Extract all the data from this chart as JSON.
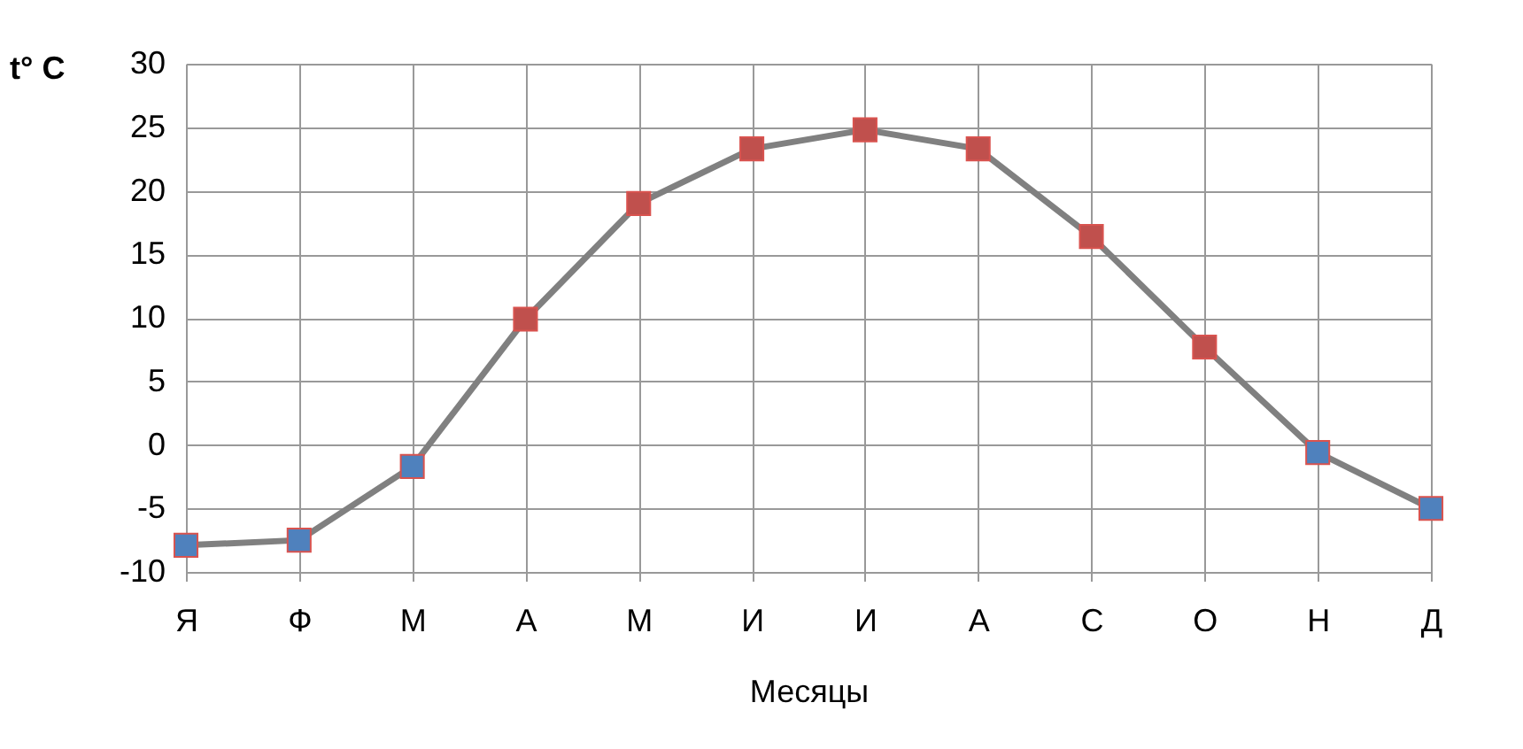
{
  "chart_data": {
    "type": "line",
    "xlabel": "Месяцы",
    "ylabel": "t° C",
    "categories": [
      "Я",
      "Ф",
      "М",
      "А",
      "М",
      "И",
      "И",
      "А",
      "С",
      "О",
      "Н",
      "Д"
    ],
    "series": [
      {
        "color": "#808080",
        "values": [
          -7.9,
          -7.5,
          -1.7,
          9.9,
          19.0,
          23.3,
          24.8,
          23.3,
          16.4,
          7.7,
          -0.6,
          -5.0
        ],
        "colors": [
          "#4f81bd",
          "#4f81bd",
          "#4f81bd",
          "#c0504d",
          "#c0504d",
          "#c0504d",
          "#c0504d",
          "#c0504d",
          "#c0504d",
          "#c0504d",
          "#4f81bd",
          "#4f81bd"
        ]
      }
    ],
    "ylim": [
      -10,
      30
    ],
    "yticks": [
      -10,
      -5,
      0,
      5,
      10,
      15,
      20,
      25,
      30
    ],
    "grid": true,
    "marker": "square",
    "line_style": "solid"
  }
}
